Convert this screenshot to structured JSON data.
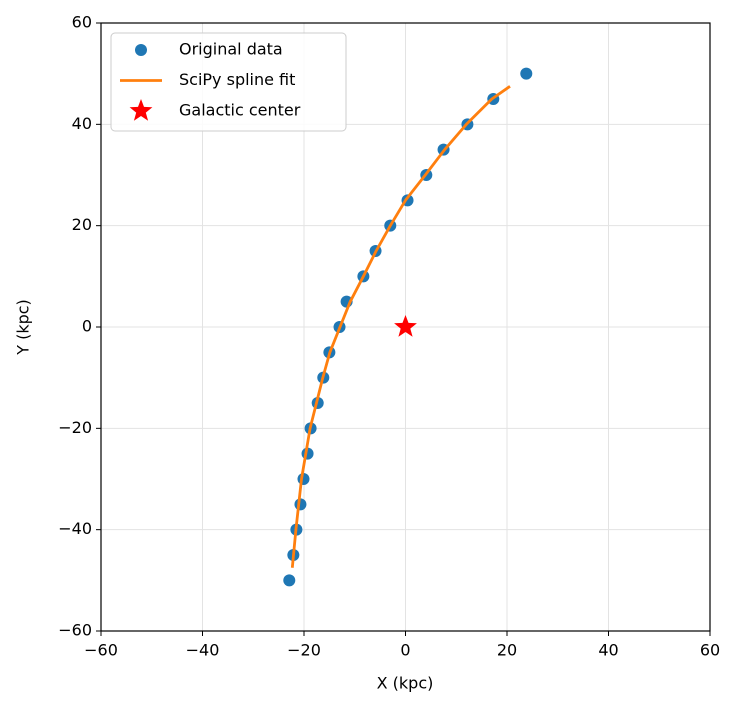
{
  "chart_data": {
    "type": "scatter-line",
    "xlabel": "X (kpc)",
    "ylabel": "Y (kpc)",
    "xlim": [
      -60,
      60
    ],
    "ylim": [
      -60,
      60
    ],
    "xticks": [
      {
        "value": -60,
        "label": "−60"
      },
      {
        "value": -40,
        "label": "−40"
      },
      {
        "value": -20,
        "label": "−20"
      },
      0,
      20,
      40,
      60
    ],
    "yticks": [
      {
        "value": -60,
        "label": "−60"
      },
      {
        "value": -40,
        "label": "−40"
      },
      {
        "value": -20,
        "label": "−20"
      },
      0,
      20,
      40,
      60
    ],
    "grid": true,
    "legend": "upper left",
    "series": [
      {
        "name": "Original data",
        "color": "#1f77b4",
        "kind": "points",
        "x": [
          -22.9,
          -22.1,
          -21.5,
          -20.7,
          -20.1,
          -19.3,
          -18.7,
          -17.3,
          -16.2,
          -15.0,
          -13.0,
          -11.6,
          -8.3,
          -5.9,
          -3.0,
          0.4,
          4.1,
          7.5,
          12.2,
          17.3,
          23.8
        ],
        "values": [
          -50,
          -45,
          -40,
          -35,
          -30,
          -25,
          -20,
          -15,
          -10,
          -5,
          0,
          5,
          10,
          15,
          20,
          25,
          30,
          35,
          40,
          45,
          50
        ]
      },
      {
        "name": "SciPy spline fit",
        "color": "#ff7f0e",
        "kind": "line",
        "x": [
          -22.3,
          -21.6,
          -20.5,
          -18.8,
          -16.3,
          -14.9,
          -12.9,
          -10.9,
          -8.3,
          -5.8,
          -3.0,
          0.0,
          3.9,
          7.7,
          12.0,
          17.0,
          20.6
        ],
        "values": [
          -47.5,
          -40,
          -30,
          -20,
          -10,
          -5,
          0,
          5,
          10,
          15,
          20,
          25,
          30,
          35,
          40,
          45,
          47.5
        ]
      },
      {
        "name": "Galactic center",
        "color": "#ff0000",
        "kind": "star",
        "x": [
          0
        ],
        "values": [
          0
        ]
      }
    ]
  }
}
